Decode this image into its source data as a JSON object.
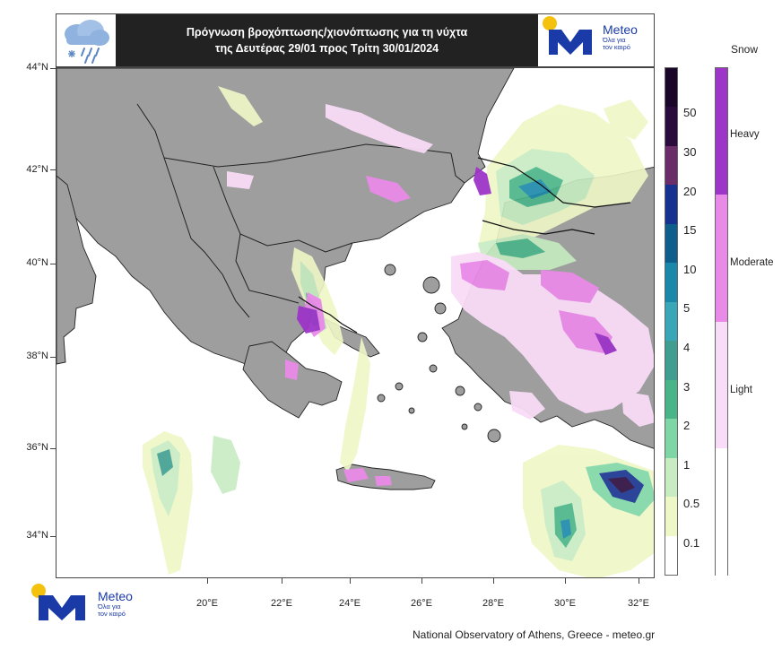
{
  "header": {
    "title_line1": "Πρόγνωση βροχόπτωσης/χιονόπτωσης για τη νύχτα",
    "title_line2": "της Δευτέρας 29/01 προς Τρίτη 30/01/2024"
  },
  "logo": {
    "name": "Meteo",
    "tagline_1": "Όλα για",
    "tagline_2": "τον καιρό"
  },
  "map": {
    "latitude_labels": [
      "44°N",
      "42°N",
      "40°N",
      "38°N",
      "36°N",
      "34°N"
    ],
    "longitude_labels": [
      "20°E",
      "22°E",
      "24°E",
      "26°E",
      "28°E",
      "30°E",
      "32°E"
    ]
  },
  "rain_legend": {
    "labels": [
      "50",
      "30",
      "20",
      "15",
      "10",
      "5",
      "4",
      "3",
      "2",
      "1",
      "0.5",
      "0.1"
    ],
    "colors": [
      "#2b0a3d",
      "#6b2c6a",
      "#16318f",
      "#0e5e8c",
      "#1a88a9",
      "#3aa7b8",
      "#3f9e8f",
      "#49b488",
      "#7ed6a6",
      "#c7ecc1",
      "#eef7c6",
      "#ffffff"
    ]
  },
  "snow_legend": {
    "title": "Snow",
    "labels": [
      "Heavy",
      "Moderate",
      "Light"
    ],
    "colors": [
      "#9c35c8",
      "#e98ae8",
      "#f9dcf7",
      "#ffffff"
    ]
  },
  "footer": {
    "credit": "National Observatory of Athens, Greece - meteo.gr"
  },
  "colors": {
    "land": "#9e9e9e",
    "sea": "#ffffff",
    "border": "#222222",
    "brand_blue": "#1a3aa8",
    "brand_yellow": "#f4c20d"
  }
}
